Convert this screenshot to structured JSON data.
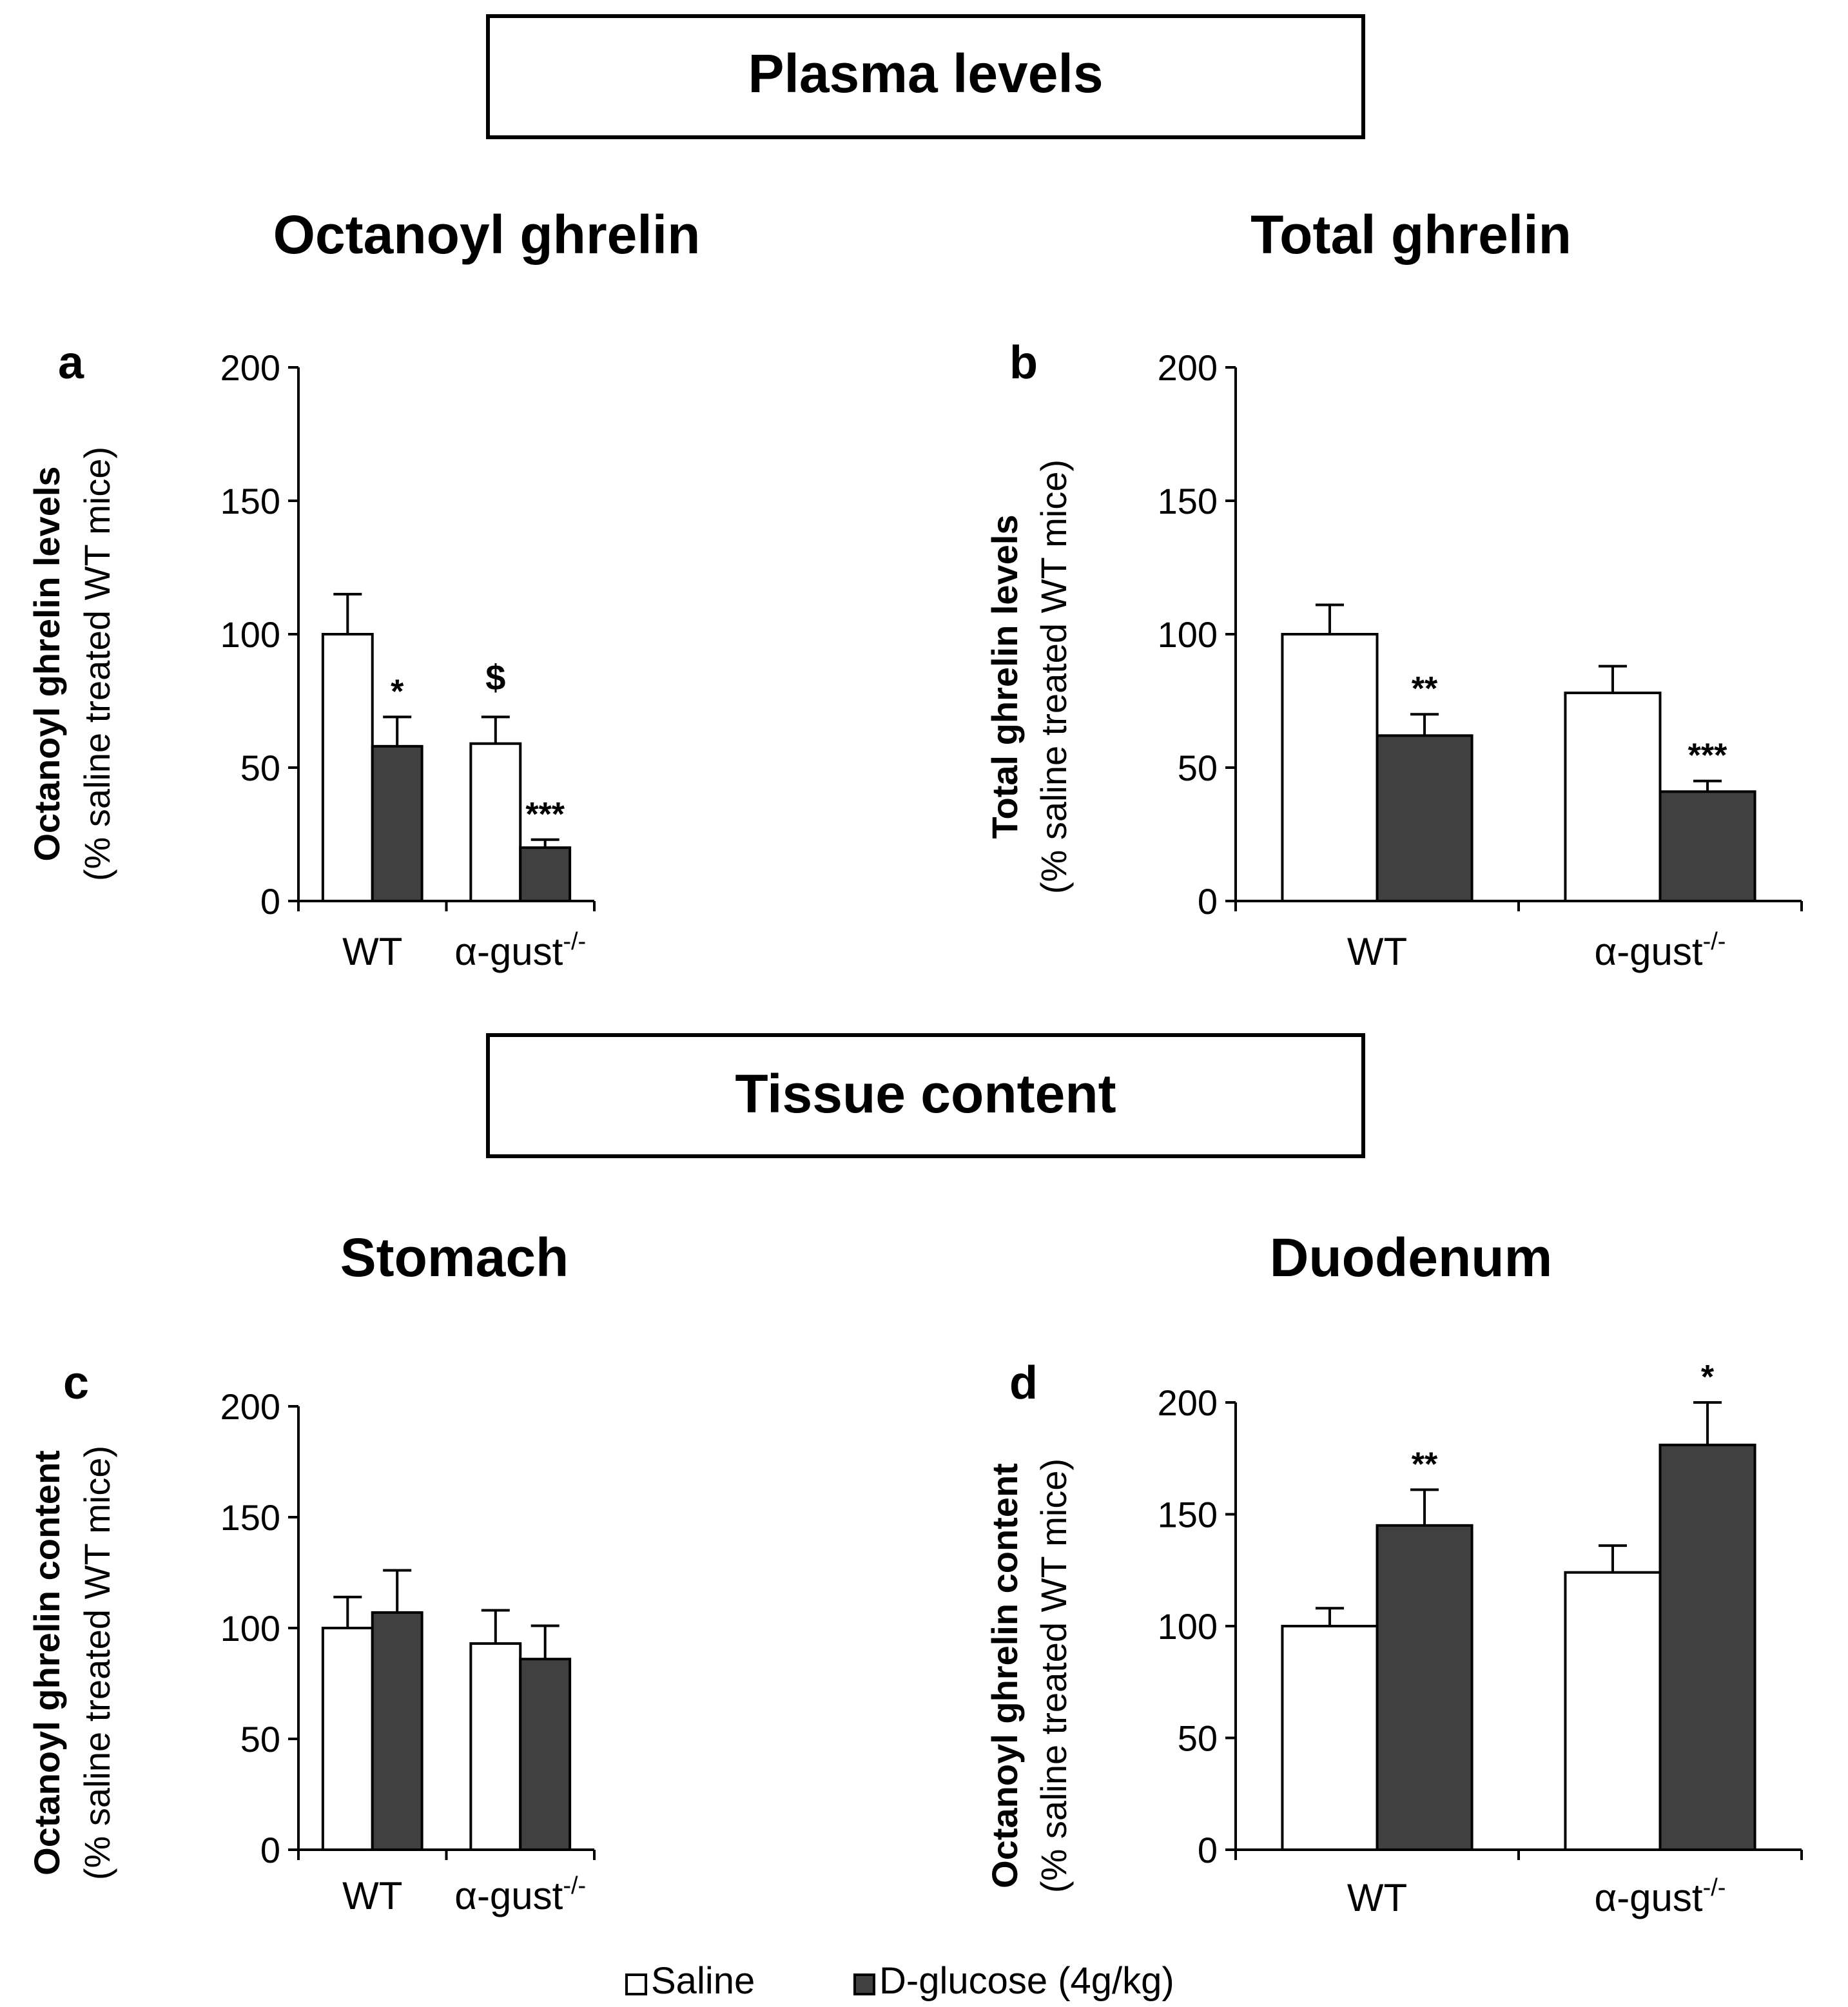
{
  "sections": [
    {
      "label": "Plasma levels"
    },
    {
      "label": "Tissue content"
    }
  ],
  "legend": {
    "saline": "Saline",
    "glucose": "D-glucose (4g/kg)"
  },
  "colors": {
    "saline_fill": "#ffffff",
    "glucose_fill": "#404040",
    "stroke": "#000000"
  },
  "chart_data": [
    {
      "panel": "a",
      "type": "bar",
      "title": "Octanoyl ghrelin",
      "ylabel_bold": "Octanoyl ghrelin levels",
      "ylabel_regular": "(% saline treated WT mice)",
      "categories": [
        {
          "base": "WT",
          "sup": ""
        },
        {
          "base": "α-gust",
          "sup": "-/-"
        }
      ],
      "ylim": [
        0,
        200
      ],
      "yticks": [
        0,
        50,
        100,
        150,
        200
      ],
      "series": [
        {
          "name": "Saline",
          "values": [
            100,
            59
          ],
          "errors": [
            15,
            10
          ],
          "annotations": [
            "",
            "$"
          ]
        },
        {
          "name": "D-glucose (4g/kg)",
          "values": [
            58,
            20
          ],
          "errors": [
            11,
            3
          ],
          "annotations": [
            "*",
            "***"
          ]
        }
      ]
    },
    {
      "panel": "b",
      "type": "bar",
      "title": "Total ghrelin",
      "ylabel_bold": "Total ghrelin levels",
      "ylabel_regular": "(% saline treated WT mice)",
      "categories": [
        {
          "base": "WT",
          "sup": ""
        },
        {
          "base": "α-gust",
          "sup": "-/-"
        }
      ],
      "ylim": [
        0,
        200
      ],
      "yticks": [
        0,
        50,
        100,
        150,
        200
      ],
      "series": [
        {
          "name": "Saline",
          "values": [
            100,
            78
          ],
          "errors": [
            11,
            10
          ],
          "annotations": [
            "",
            ""
          ]
        },
        {
          "name": "D-glucose (4g/kg)",
          "values": [
            62,
            41
          ],
          "errors": [
            8,
            4
          ],
          "annotations": [
            "**",
            "***"
          ]
        }
      ]
    },
    {
      "panel": "c",
      "type": "bar",
      "title": "Stomach",
      "ylabel_bold": "Octanoyl ghrelin content",
      "ylabel_regular": "(% saline treated WT mice)",
      "categories": [
        {
          "base": "WT",
          "sup": ""
        },
        {
          "base": "α-gust",
          "sup": "-/-"
        }
      ],
      "ylim": [
        0,
        200
      ],
      "yticks": [
        0,
        50,
        100,
        150,
        200
      ],
      "series": [
        {
          "name": "Saline",
          "values": [
            100,
            93
          ],
          "errors": [
            14,
            15
          ],
          "annotations": [
            "",
            ""
          ]
        },
        {
          "name": "D-glucose (4g/kg)",
          "values": [
            107,
            86
          ],
          "errors": [
            19,
            15
          ],
          "annotations": [
            "",
            ""
          ]
        }
      ]
    },
    {
      "panel": "d",
      "type": "bar",
      "title": "Duodenum",
      "ylabel_bold": "Octanoyl ghrelin content",
      "ylabel_regular": "(% saline treated WT mice)",
      "categories": [
        {
          "base": "WT",
          "sup": ""
        },
        {
          "base": "α-gust",
          "sup": "-/-"
        }
      ],
      "ylim": [
        0,
        200
      ],
      "yticks": [
        0,
        50,
        100,
        150,
        200
      ],
      "series": [
        {
          "name": "Saline",
          "values": [
            100,
            124
          ],
          "errors": [
            8,
            12
          ],
          "annotations": [
            "",
            ""
          ]
        },
        {
          "name": "D-glucose (4g/kg)",
          "values": [
            145,
            181
          ],
          "errors": [
            16,
            19
          ],
          "annotations": [
            "**",
            "*"
          ]
        }
      ]
    }
  ]
}
